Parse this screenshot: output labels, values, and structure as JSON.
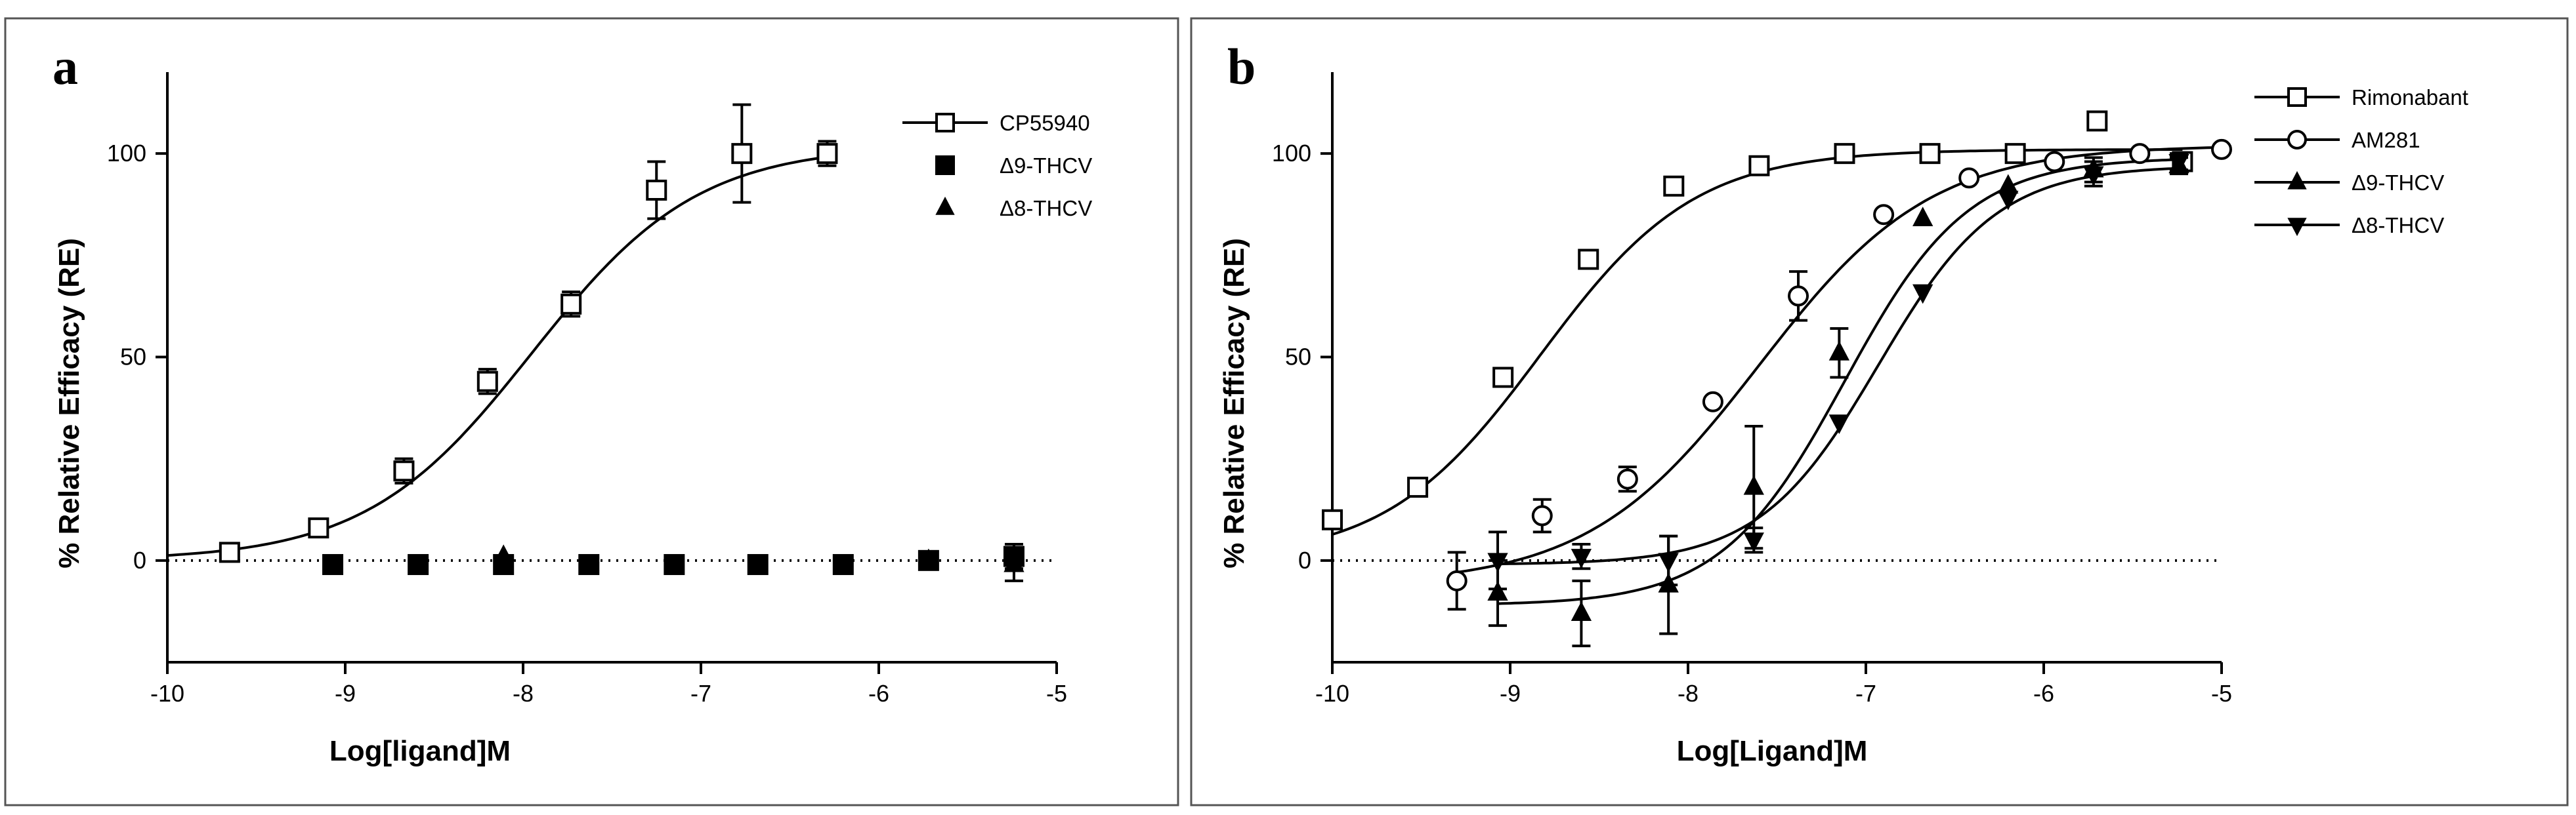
{
  "chart_data": [
    {
      "type": "scatter",
      "panel_label": "a",
      "xlabel": "Log[ligand]M",
      "ylabel": "% Relative Efficacy (RE)",
      "xlim": [
        -10,
        -5
      ],
      "ylim": [
        -25,
        120
      ],
      "x_ticks": [
        "-10",
        "-9",
        "-8",
        "-7",
        "-6",
        "-5"
      ],
      "y_ticks": [
        "0",
        "50",
        "100"
      ],
      "legend_position": "top-right",
      "series": [
        {
          "name": "CP55940",
          "marker": "open-square",
          "fit": {
            "bottom": 0,
            "top": 102,
            "logEC50": -7.95,
            "hill": 0.93
          },
          "x": [
            -9.65,
            -9.15,
            -8.67,
            -8.2,
            -7.73,
            -7.25,
            -6.77,
            -6.29
          ],
          "y": [
            2,
            8,
            22,
            44,
            63,
            91,
            100,
            100
          ],
          "err": [
            0,
            1,
            3,
            3,
            3,
            7,
            12,
            3
          ]
        },
        {
          "name": "Δ9-THCV",
          "marker": "filled-square",
          "x": [
            -9.07,
            -8.59,
            -8.11,
            -7.63,
            -7.15,
            -6.68,
            -6.2,
            -5.72,
            -5.24
          ],
          "y": [
            -1,
            -1,
            -1,
            -1,
            -1,
            -1,
            -1,
            0,
            1
          ],
          "err": [
            0,
            0,
            0,
            0,
            0,
            0,
            0,
            2,
            3
          ]
        },
        {
          "name": "Δ8-THCV",
          "marker": "filled-triangle",
          "x": [
            -8.11,
            -5.72,
            -5.24
          ],
          "y": [
            1,
            0,
            -1
          ],
          "err": [
            0,
            2,
            4
          ]
        }
      ],
      "baseline": 0
    },
    {
      "type": "scatter",
      "panel_label": "b",
      "xlabel": "Log[Ligand]M",
      "ylabel": "% Relative Efficacy (RE)",
      "xlim": [
        -10,
        -5
      ],
      "ylim": [
        -25,
        120
      ],
      "x_ticks": [
        "-10",
        "-9",
        "-8",
        "-7",
        "-6",
        "-5"
      ],
      "y_ticks": [
        "0",
        "50",
        "100"
      ],
      "legend_position": "top-right",
      "series": [
        {
          "name": "Rimonabant",
          "marker": "open-square",
          "fit": {
            "bottom": 0,
            "top": 101,
            "logEC50": -8.83,
            "hill": 1.0
          },
          "x": [
            -10,
            -9.52,
            -9.04,
            -8.56,
            -8.08,
            -7.6,
            -7.12,
            -6.64,
            -6.16,
            -5.7,
            -5.22
          ],
          "y": [
            10,
            18,
            45,
            74,
            92,
            97,
            100,
            100,
            100,
            108,
            98
          ],
          "err": [
            0,
            0,
            0,
            0,
            0,
            0,
            0,
            0,
            0,
            0,
            0
          ]
        },
        {
          "name": "AM281",
          "marker": "open-circle",
          "fit": {
            "bottom": -6,
            "top": 102,
            "logEC50": -7.6,
            "hill": 0.9
          },
          "x": [
            -9.3,
            -8.82,
            -8.34,
            -7.86,
            -7.38,
            -6.9,
            -6.42,
            -5.94,
            -5.46,
            -5.0
          ],
          "y": [
            -5,
            11,
            20,
            39,
            65,
            85,
            94,
            98,
            100,
            101
          ],
          "err": [
            7,
            4,
            3,
            0,
            6,
            0,
            0,
            0,
            0,
            0
          ]
        },
        {
          "name": "Δ9-THCV",
          "marker": "filled-triangle",
          "fit": {
            "bottom": -11,
            "top": 99,
            "logEC50": -7.12,
            "hill": 1.25
          },
          "x": [
            -9.07,
            -8.6,
            -8.11,
            -7.63,
            -7.15,
            -6.68,
            -6.2,
            -5.72,
            -5.24
          ],
          "y": [
            -8,
            -13,
            -6,
            18,
            51,
            84,
            92,
            96,
            97
          ],
          "err": [
            8,
            8,
            12,
            15,
            6,
            0,
            0,
            3,
            2
          ]
        },
        {
          "name": "Δ8-THCV",
          "marker": "filled-triangle-down",
          "fit": {
            "bottom": -1,
            "top": 97,
            "logEC50": -6.93,
            "hill": 1.3
          },
          "x": [
            -9.07,
            -8.6,
            -8.11,
            -7.63,
            -7.15,
            -6.68,
            -6.2,
            -5.72,
            -5.24
          ],
          "y": [
            0,
            1,
            0,
            5,
            34,
            66,
            89,
            95,
            98
          ],
          "err": [
            7,
            3,
            6,
            3,
            0,
            0,
            0,
            3,
            2
          ]
        }
      ],
      "baseline": 0
    }
  ]
}
